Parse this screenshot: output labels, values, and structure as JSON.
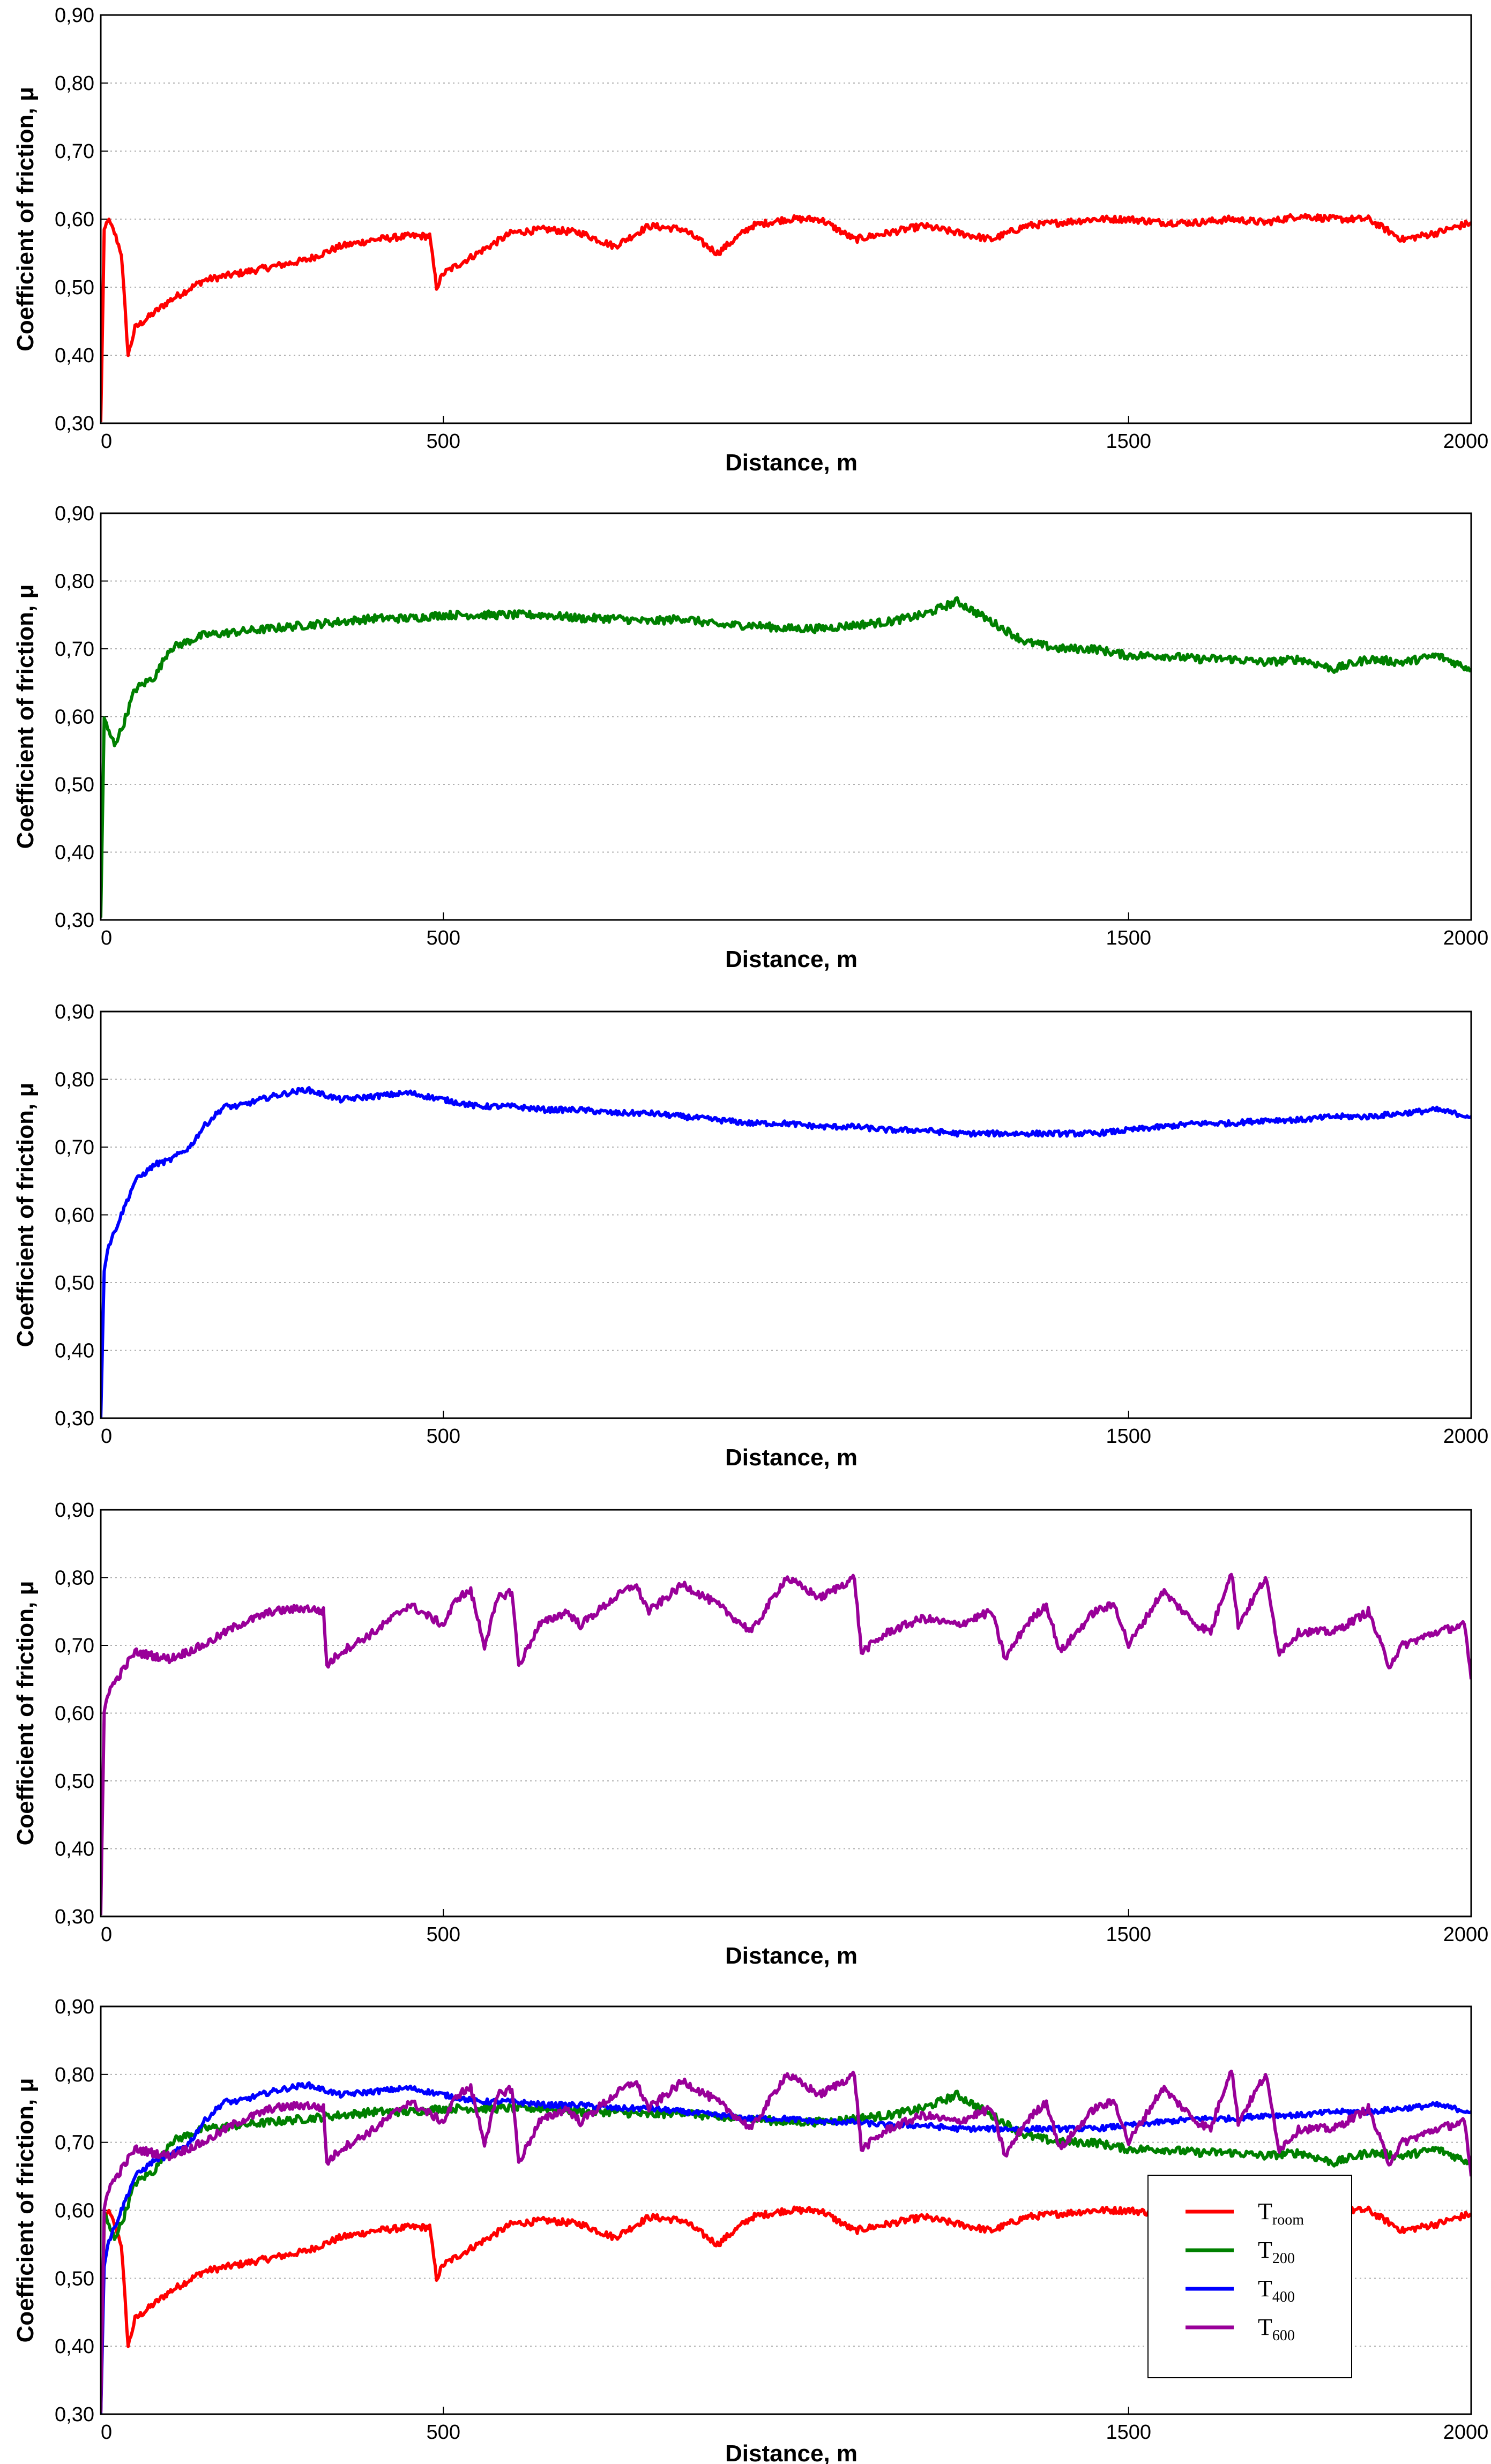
{
  "chart_data": [
    {
      "type": "line",
      "xlabel": "Distance, m",
      "ylabel": "Coefficient of friction, μ",
      "xlim": [
        0,
        2000
      ],
      "ylim": [
        0.3,
        0.9
      ],
      "xticks": [
        "0",
        "500",
        "1500",
        "2000"
      ],
      "yticks": [
        "0,30",
        "0,40",
        "0,50",
        "0,60",
        "0,70",
        "0,80",
        "0,90"
      ],
      "grid": "horizontal-dotted",
      "series": [
        {
          "color": "#ff0000",
          "x": [
            0,
            5,
            10,
            20,
            30,
            40,
            50,
            100,
            150,
            200,
            250,
            300,
            350,
            400,
            450,
            480,
            490,
            500,
            550,
            600,
            650,
            700,
            750,
            800,
            850,
            900,
            950,
            1000,
            1050,
            1100,
            1150,
            1200,
            1250,
            1300,
            1350,
            1400,
            1450,
            1500,
            1550,
            1600,
            1650,
            1700,
            1750,
            1800,
            1850,
            1900,
            1950,
            2000
          ],
          "y": [
            0.3,
            0.58,
            0.6,
            0.58,
            0.55,
            0.4,
            0.44,
            0.48,
            0.51,
            0.52,
            0.53,
            0.54,
            0.56,
            0.57,
            0.575,
            0.575,
            0.5,
            0.52,
            0.55,
            0.58,
            0.585,
            0.58,
            0.56,
            0.59,
            0.585,
            0.55,
            0.59,
            0.6,
            0.6,
            0.57,
            0.58,
            0.59,
            0.58,
            0.57,
            0.59,
            0.595,
            0.6,
            0.6,
            0.595,
            0.595,
            0.6,
            0.595,
            0.605,
            0.6,
            0.6,
            0.57,
            0.58,
            0.595
          ]
        }
      ]
    },
    {
      "type": "line",
      "xlabel": "Distance, m",
      "ylabel": "Coefficient of friction, μ",
      "xlim": [
        0,
        2000
      ],
      "ylim": [
        0.3,
        0.9
      ],
      "xticks": [
        "0",
        "500",
        "1500",
        "2000"
      ],
      "yticks": [
        "0,30",
        "0,40",
        "0,50",
        "0,60",
        "0,70",
        "0,80",
        "0,90"
      ],
      "grid": "horizontal-dotted",
      "series": [
        {
          "color": "#008000",
          "x": [
            0,
            5,
            10,
            20,
            30,
            50,
            80,
            100,
            150,
            200,
            250,
            300,
            350,
            400,
            450,
            500,
            550,
            600,
            650,
            700,
            750,
            800,
            850,
            900,
            950,
            1000,
            1050,
            1100,
            1150,
            1200,
            1250,
            1300,
            1350,
            1400,
            1450,
            1500,
            1550,
            1600,
            1650,
            1700,
            1750,
            1800,
            1850,
            1900,
            1950,
            2000
          ],
          "y": [
            0.3,
            0.6,
            0.58,
            0.56,
            0.58,
            0.64,
            0.66,
            0.7,
            0.72,
            0.725,
            0.73,
            0.735,
            0.74,
            0.745,
            0.745,
            0.75,
            0.75,
            0.75,
            0.75,
            0.745,
            0.745,
            0.74,
            0.745,
            0.735,
            0.735,
            0.73,
            0.73,
            0.735,
            0.74,
            0.75,
            0.77,
            0.74,
            0.71,
            0.7,
            0.7,
            0.69,
            0.69,
            0.685,
            0.685,
            0.68,
            0.685,
            0.67,
            0.685,
            0.68,
            0.69,
            0.67
          ]
        }
      ]
    },
    {
      "type": "line",
      "xlabel": "Distance, m",
      "ylabel": "Coefficient of friction, μ",
      "xlim": [
        0,
        2000
      ],
      "ylim": [
        0.3,
        0.9
      ],
      "xticks": [
        "0",
        "500",
        "1500",
        "2000"
      ],
      "yticks": [
        "0,30",
        "0,40",
        "0,50",
        "0,60",
        "0,70",
        "0,80",
        "0,90"
      ],
      "grid": "horizontal-dotted",
      "series": [
        {
          "color": "#0000ff",
          "x": [
            0,
            5,
            10,
            30,
            50,
            80,
            100,
            130,
            150,
            180,
            200,
            250,
            300,
            350,
            400,
            450,
            500,
            550,
            600,
            650,
            700,
            750,
            800,
            850,
            900,
            950,
            1000,
            1050,
            1100,
            1150,
            1200,
            1250,
            1300,
            1350,
            1400,
            1450,
            1500,
            1550,
            1600,
            1650,
            1700,
            1750,
            1800,
            1850,
            1900,
            1950,
            2000
          ],
          "y": [
            0.3,
            0.52,
            0.55,
            0.6,
            0.65,
            0.675,
            0.68,
            0.7,
            0.73,
            0.76,
            0.76,
            0.775,
            0.785,
            0.77,
            0.775,
            0.78,
            0.77,
            0.76,
            0.76,
            0.755,
            0.755,
            0.75,
            0.75,
            0.745,
            0.74,
            0.735,
            0.735,
            0.73,
            0.73,
            0.725,
            0.725,
            0.72,
            0.72,
            0.72,
            0.72,
            0.72,
            0.725,
            0.73,
            0.735,
            0.735,
            0.74,
            0.74,
            0.745,
            0.745,
            0.75,
            0.755,
            0.745
          ]
        }
      ]
    },
    {
      "type": "line",
      "xlabel": "Distance, m",
      "ylabel": "Coefficient of friction, μ",
      "xlim": [
        0,
        2000
      ],
      "ylim": [
        0.3,
        0.9
      ],
      "xticks": [
        "0",
        "500",
        "1500",
        "2000"
      ],
      "yticks": [
        "0,30",
        "0,40",
        "0,50",
        "0,60",
        "0,70",
        "0,80",
        "0,90"
      ],
      "grid": "horizontal-dotted",
      "series": [
        {
          "color": "#990099",
          "x": [
            0,
            5,
            10,
            30,
            50,
            100,
            150,
            200,
            250,
            300,
            325,
            330,
            350,
            400,
            450,
            500,
            520,
            540,
            560,
            580,
            600,
            610,
            640,
            680,
            700,
            750,
            780,
            800,
            850,
            900,
            950,
            1000,
            1050,
            1100,
            1110,
            1150,
            1200,
            1250,
            1300,
            1320,
            1350,
            1380,
            1400,
            1450,
            1480,
            1500,
            1550,
            1600,
            1620,
            1650,
            1660,
            1700,
            1720,
            1750,
            1800,
            1850,
            1880,
            1900,
            1950,
            1990,
            2000
          ],
          "y": [
            0.3,
            0.6,
            0.63,
            0.66,
            0.69,
            0.68,
            0.7,
            0.73,
            0.75,
            0.755,
            0.75,
            0.67,
            0.69,
            0.72,
            0.76,
            0.73,
            0.77,
            0.78,
            0.7,
            0.77,
            0.78,
            0.67,
            0.73,
            0.75,
            0.73,
            0.77,
            0.79,
            0.75,
            0.79,
            0.76,
            0.72,
            0.8,
            0.77,
            0.8,
            0.69,
            0.72,
            0.74,
            0.73,
            0.75,
            0.68,
            0.73,
            0.76,
            0.69,
            0.75,
            0.76,
            0.7,
            0.78,
            0.73,
            0.72,
            0.81,
            0.73,
            0.8,
            0.69,
            0.72,
            0.72,
            0.75,
            0.67,
            0.7,
            0.72,
            0.73,
            0.65
          ]
        }
      ]
    },
    {
      "type": "line",
      "xlabel": "Distance, m",
      "ylabel": "Coefficient of friction, μ",
      "xlim": [
        0,
        2000
      ],
      "ylim": [
        0.3,
        0.9
      ],
      "xticks": [
        "0",
        "500",
        "1500",
        "2000"
      ],
      "yticks": [
        "0,30",
        "0,40",
        "0,50",
        "0,60",
        "0,70",
        "0,80",
        "0,90"
      ],
      "grid": "horizontal-dotted",
      "legend": "bottom-right",
      "series": [
        {
          "name": "T",
          "sub": "room",
          "color": "#ff0000",
          "ref": 0
        },
        {
          "name": "T",
          "sub": "200",
          "color": "#008000",
          "ref": 1
        },
        {
          "name": "T",
          "sub": "400",
          "color": "#0000ff",
          "ref": 2
        },
        {
          "name": "T",
          "sub": "600",
          "color": "#990099",
          "ref": 3
        }
      ]
    }
  ]
}
